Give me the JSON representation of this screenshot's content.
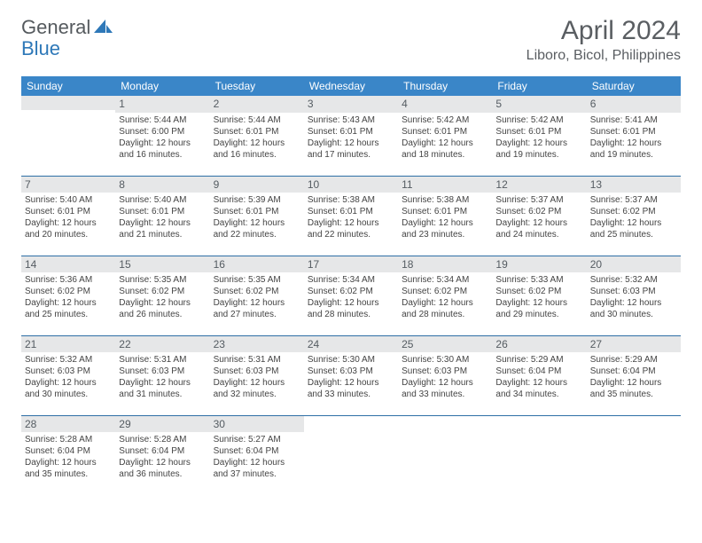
{
  "logo": {
    "word1": "General",
    "word2": "Blue"
  },
  "title": "April 2024",
  "location": "Liboro, Bicol, Philippines",
  "colors": {
    "header_bg": "#3a86c8",
    "header_text": "#ffffff",
    "row_divider": "#2e6fa6",
    "band_bg": "#e6e7e8",
    "text_main": "#444444",
    "title_color": "#5a5e62",
    "logo_gray": "#555a5e",
    "logo_blue": "#2e78b8"
  },
  "typography": {
    "title_fontsize": 30,
    "location_fontsize": 16,
    "header_fontsize": 12,
    "daynum_fontsize": 12,
    "cell_fontsize": 10
  },
  "day_headers": [
    "Sunday",
    "Monday",
    "Tuesday",
    "Wednesday",
    "Thursday",
    "Friday",
    "Saturday"
  ],
  "weeks": [
    [
      {
        "blank": true,
        "band": true
      },
      {
        "num": "1",
        "sunrise": "Sunrise: 5:44 AM",
        "sunset": "Sunset: 6:00 PM",
        "daylight1": "Daylight: 12 hours",
        "daylight2": "and 16 minutes."
      },
      {
        "num": "2",
        "sunrise": "Sunrise: 5:44 AM",
        "sunset": "Sunset: 6:01 PM",
        "daylight1": "Daylight: 12 hours",
        "daylight2": "and 16 minutes."
      },
      {
        "num": "3",
        "sunrise": "Sunrise: 5:43 AM",
        "sunset": "Sunset: 6:01 PM",
        "daylight1": "Daylight: 12 hours",
        "daylight2": "and 17 minutes."
      },
      {
        "num": "4",
        "sunrise": "Sunrise: 5:42 AM",
        "sunset": "Sunset: 6:01 PM",
        "daylight1": "Daylight: 12 hours",
        "daylight2": "and 18 minutes."
      },
      {
        "num": "5",
        "sunrise": "Sunrise: 5:42 AM",
        "sunset": "Sunset: 6:01 PM",
        "daylight1": "Daylight: 12 hours",
        "daylight2": "and 19 minutes."
      },
      {
        "num": "6",
        "sunrise": "Sunrise: 5:41 AM",
        "sunset": "Sunset: 6:01 PM",
        "daylight1": "Daylight: 12 hours",
        "daylight2": "and 19 minutes."
      }
    ],
    [
      {
        "num": "7",
        "sunrise": "Sunrise: 5:40 AM",
        "sunset": "Sunset: 6:01 PM",
        "daylight1": "Daylight: 12 hours",
        "daylight2": "and 20 minutes."
      },
      {
        "num": "8",
        "sunrise": "Sunrise: 5:40 AM",
        "sunset": "Sunset: 6:01 PM",
        "daylight1": "Daylight: 12 hours",
        "daylight2": "and 21 minutes."
      },
      {
        "num": "9",
        "sunrise": "Sunrise: 5:39 AM",
        "sunset": "Sunset: 6:01 PM",
        "daylight1": "Daylight: 12 hours",
        "daylight2": "and 22 minutes."
      },
      {
        "num": "10",
        "sunrise": "Sunrise: 5:38 AM",
        "sunset": "Sunset: 6:01 PM",
        "daylight1": "Daylight: 12 hours",
        "daylight2": "and 22 minutes."
      },
      {
        "num": "11",
        "sunrise": "Sunrise: 5:38 AM",
        "sunset": "Sunset: 6:01 PM",
        "daylight1": "Daylight: 12 hours",
        "daylight2": "and 23 minutes."
      },
      {
        "num": "12",
        "sunrise": "Sunrise: 5:37 AM",
        "sunset": "Sunset: 6:02 PM",
        "daylight1": "Daylight: 12 hours",
        "daylight2": "and 24 minutes."
      },
      {
        "num": "13",
        "sunrise": "Sunrise: 5:37 AM",
        "sunset": "Sunset: 6:02 PM",
        "daylight1": "Daylight: 12 hours",
        "daylight2": "and 25 minutes."
      }
    ],
    [
      {
        "num": "14",
        "sunrise": "Sunrise: 5:36 AM",
        "sunset": "Sunset: 6:02 PM",
        "daylight1": "Daylight: 12 hours",
        "daylight2": "and 25 minutes."
      },
      {
        "num": "15",
        "sunrise": "Sunrise: 5:35 AM",
        "sunset": "Sunset: 6:02 PM",
        "daylight1": "Daylight: 12 hours",
        "daylight2": "and 26 minutes."
      },
      {
        "num": "16",
        "sunrise": "Sunrise: 5:35 AM",
        "sunset": "Sunset: 6:02 PM",
        "daylight1": "Daylight: 12 hours",
        "daylight2": "and 27 minutes."
      },
      {
        "num": "17",
        "sunrise": "Sunrise: 5:34 AM",
        "sunset": "Sunset: 6:02 PM",
        "daylight1": "Daylight: 12 hours",
        "daylight2": "and 28 minutes."
      },
      {
        "num": "18",
        "sunrise": "Sunrise: 5:34 AM",
        "sunset": "Sunset: 6:02 PM",
        "daylight1": "Daylight: 12 hours",
        "daylight2": "and 28 minutes."
      },
      {
        "num": "19",
        "sunrise": "Sunrise: 5:33 AM",
        "sunset": "Sunset: 6:02 PM",
        "daylight1": "Daylight: 12 hours",
        "daylight2": "and 29 minutes."
      },
      {
        "num": "20",
        "sunrise": "Sunrise: 5:32 AM",
        "sunset": "Sunset: 6:03 PM",
        "daylight1": "Daylight: 12 hours",
        "daylight2": "and 30 minutes."
      }
    ],
    [
      {
        "num": "21",
        "sunrise": "Sunrise: 5:32 AM",
        "sunset": "Sunset: 6:03 PM",
        "daylight1": "Daylight: 12 hours",
        "daylight2": "and 30 minutes."
      },
      {
        "num": "22",
        "sunrise": "Sunrise: 5:31 AM",
        "sunset": "Sunset: 6:03 PM",
        "daylight1": "Daylight: 12 hours",
        "daylight2": "and 31 minutes."
      },
      {
        "num": "23",
        "sunrise": "Sunrise: 5:31 AM",
        "sunset": "Sunset: 6:03 PM",
        "daylight1": "Daylight: 12 hours",
        "daylight2": "and 32 minutes."
      },
      {
        "num": "24",
        "sunrise": "Sunrise: 5:30 AM",
        "sunset": "Sunset: 6:03 PM",
        "daylight1": "Daylight: 12 hours",
        "daylight2": "and 33 minutes."
      },
      {
        "num": "25",
        "sunrise": "Sunrise: 5:30 AM",
        "sunset": "Sunset: 6:03 PM",
        "daylight1": "Daylight: 12 hours",
        "daylight2": "and 33 minutes."
      },
      {
        "num": "26",
        "sunrise": "Sunrise: 5:29 AM",
        "sunset": "Sunset: 6:04 PM",
        "daylight1": "Daylight: 12 hours",
        "daylight2": "and 34 minutes."
      },
      {
        "num": "27",
        "sunrise": "Sunrise: 5:29 AM",
        "sunset": "Sunset: 6:04 PM",
        "daylight1": "Daylight: 12 hours",
        "daylight2": "and 35 minutes."
      }
    ],
    [
      {
        "num": "28",
        "sunrise": "Sunrise: 5:28 AM",
        "sunset": "Sunset: 6:04 PM",
        "daylight1": "Daylight: 12 hours",
        "daylight2": "and 35 minutes."
      },
      {
        "num": "29",
        "sunrise": "Sunrise: 5:28 AM",
        "sunset": "Sunset: 6:04 PM",
        "daylight1": "Daylight: 12 hours",
        "daylight2": "and 36 minutes."
      },
      {
        "num": "30",
        "sunrise": "Sunrise: 5:27 AM",
        "sunset": "Sunset: 6:04 PM",
        "daylight1": "Daylight: 12 hours",
        "daylight2": "and 37 minutes."
      },
      {
        "blank": true
      },
      {
        "blank": true
      },
      {
        "blank": true
      },
      {
        "blank": true
      }
    ]
  ]
}
